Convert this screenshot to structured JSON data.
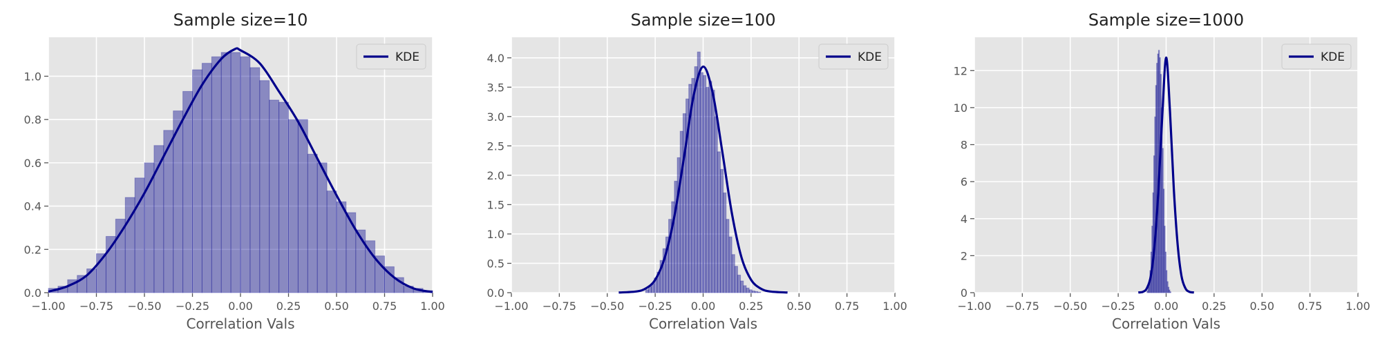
{
  "chart_data": [
    {
      "type": "histogram+kde",
      "title": "Sample size=10",
      "xlabel": "Correlation Vals",
      "ylabel": "",
      "xlim": [
        -1.0,
        1.0
      ],
      "ylim": [
        0,
        1.18
      ],
      "xticks": [
        "−1.00",
        "−0.75",
        "−0.50",
        "−0.25",
        "0.00",
        "0.25",
        "0.50",
        "0.75",
        "1.00"
      ],
      "yticks": [
        "0.0",
        "0.2",
        "0.4",
        "0.6",
        "0.8",
        "1.0"
      ],
      "ytick_values": [
        0,
        0.2,
        0.4,
        0.6,
        0.8,
        1.0
      ],
      "grid": true,
      "legend": {
        "placement": "top-right",
        "entries": [
          "KDE"
        ]
      },
      "bins": {
        "start": -1.0,
        "width": 0.05,
        "heights": [
          0.02,
          0.03,
          0.06,
          0.08,
          0.11,
          0.18,
          0.26,
          0.34,
          0.44,
          0.53,
          0.6,
          0.68,
          0.75,
          0.84,
          0.93,
          1.03,
          1.06,
          1.09,
          1.11,
          1.11,
          1.09,
          1.04,
          0.98,
          0.89,
          0.88,
          0.8,
          0.8,
          0.64,
          0.6,
          0.47,
          0.42,
          0.37,
          0.29,
          0.24,
          0.17,
          0.12,
          0.07,
          0.03,
          0.02,
          0.01
        ]
      },
      "kde": {
        "x": [
          -1.0,
          -0.9,
          -0.8,
          -0.7,
          -0.6,
          -0.5,
          -0.4,
          -0.3,
          -0.2,
          -0.1,
          -0.03,
          0.0,
          0.1,
          0.2,
          0.3,
          0.4,
          0.5,
          0.6,
          0.7,
          0.8,
          0.9,
          1.0
        ],
        "y": [
          0.005,
          0.03,
          0.08,
          0.18,
          0.31,
          0.46,
          0.63,
          0.8,
          0.96,
          1.08,
          1.125,
          1.12,
          1.06,
          0.93,
          0.79,
          0.62,
          0.45,
          0.29,
          0.16,
          0.07,
          0.02,
          0.003
        ]
      }
    },
    {
      "type": "histogram+kde",
      "title": "Sample size=100",
      "xlabel": "Correlation Vals",
      "ylabel": "",
      "xlim": [
        -1.0,
        1.0
      ],
      "ylim": [
        0,
        4.35
      ],
      "xticks": [
        "−1.00",
        "−0.75",
        "−0.50",
        "−0.25",
        "0.00",
        "0.25",
        "0.50",
        "0.75",
        "1.00"
      ],
      "yticks": [
        "0.0",
        "0.5",
        "1.0",
        "1.5",
        "2.0",
        "2.5",
        "3.0",
        "3.5",
        "4.0"
      ],
      "ytick_values": [
        0,
        0.5,
        1.0,
        1.5,
        2.0,
        2.5,
        3.0,
        3.5,
        4.0
      ],
      "grid": true,
      "legend": {
        "placement": "top-right",
        "entries": [
          "KDE"
        ]
      },
      "bins": {
        "start": -0.3,
        "width": 0.015,
        "heights": [
          0.05,
          0.1,
          0.15,
          0.25,
          0.35,
          0.55,
          0.75,
          0.95,
          1.25,
          1.55,
          1.9,
          2.3,
          2.75,
          3.05,
          3.3,
          3.55,
          3.65,
          3.85,
          4.1,
          3.75,
          3.7,
          3.5,
          3.6,
          3.45,
          3.0,
          2.4,
          2.1,
          1.7,
          1.25,
          0.95,
          0.65,
          0.45,
          0.3,
          0.2,
          0.12,
          0.08,
          0.05,
          0.03,
          0.02,
          0.01
        ]
      },
      "kde": {
        "x": [
          -0.44,
          -0.35,
          -0.3,
          -0.25,
          -0.2,
          -0.15,
          -0.1,
          -0.05,
          0.0,
          0.05,
          0.1,
          0.15,
          0.2,
          0.25,
          0.3,
          0.35,
          0.44
        ],
        "y": [
          0.003,
          0.02,
          0.07,
          0.22,
          0.6,
          1.3,
          2.3,
          3.35,
          3.85,
          3.4,
          2.4,
          1.35,
          0.6,
          0.22,
          0.07,
          0.02,
          0.003
        ]
      }
    },
    {
      "type": "histogram+kde",
      "title": "Sample size=1000",
      "xlabel": "Correlation Vals",
      "ylabel": "",
      "xlim": [
        -1.0,
        1.0
      ],
      "ylim": [
        0,
        13.8
      ],
      "xticks": [
        "−1.00",
        "−0.75",
        "−0.50",
        "−0.25",
        "0.00",
        "0.25",
        "0.50",
        "0.75",
        "1.00"
      ],
      "yticks": [
        "0",
        "2",
        "4",
        "6",
        "8",
        "10",
        "12"
      ],
      "ytick_values": [
        0,
        2,
        4,
        6,
        8,
        10,
        12
      ],
      "grid": true,
      "legend": {
        "placement": "top-right",
        "entries": [
          "KDE"
        ]
      },
      "bins": {
        "start": -0.1,
        "width": 0.005,
        "heights": [
          0.1,
          0.3,
          0.6,
          1.2,
          2.2,
          3.6,
          5.4,
          7.4,
          9.5,
          11.2,
          12.4,
          12.9,
          13.1,
          12.7,
          11.8,
          10.0,
          7.8,
          5.6,
          3.6,
          2.2,
          1.2,
          0.6,
          0.3,
          0.15,
          0.05
        ]
      },
      "kde": {
        "x": [
          -0.145,
          -0.12,
          -0.1,
          -0.08,
          -0.06,
          -0.04,
          -0.02,
          0.0,
          0.02,
          0.04,
          0.06,
          0.08,
          0.1,
          0.12,
          0.145
        ],
        "y": [
          0.01,
          0.05,
          0.25,
          0.9,
          2.6,
          5.6,
          9.6,
          12.7,
          9.8,
          5.6,
          2.6,
          0.9,
          0.25,
          0.05,
          0.01
        ]
      }
    }
  ]
}
